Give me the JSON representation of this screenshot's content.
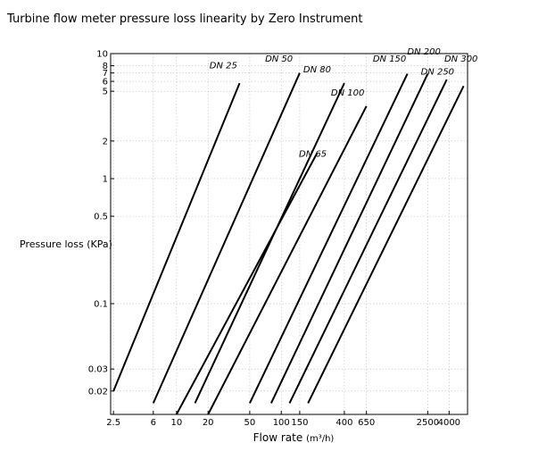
{
  "chart_data": {
    "type": "line",
    "title": "Turbine flow meter pressure loss linearity by Zero Instrument",
    "xlabel": "Flow rate",
    "xlabel_unit": "(m³/h)",
    "ylabel": "Pressure loss (KPa)",
    "xscale": "log",
    "yscale": "log",
    "xlim": [
      2.35,
      6000
    ],
    "ylim": [
      0.013,
      10
    ],
    "grid": true,
    "x_ticks": [
      {
        "v": 2.5,
        "label": "2.5"
      },
      {
        "v": 6,
        "label": "6"
      },
      {
        "v": 10,
        "label": "10"
      },
      {
        "v": 20,
        "label": "20"
      },
      {
        "v": 50,
        "label": "50"
      },
      {
        "v": 100,
        "label": "100"
      },
      {
        "v": 150,
        "label": "150"
      },
      {
        "v": 400,
        "label": "400"
      },
      {
        "v": 650,
        "label": "650"
      },
      {
        "v": 2500,
        "label": "2500"
      },
      {
        "v": 4000,
        "label": "4000"
      }
    ],
    "y_ticks": [
      {
        "v": 0.02,
        "label": "0.02"
      },
      {
        "v": 0.03,
        "label": "0.03"
      },
      {
        "v": 0.1,
        "label": "0.1"
      },
      {
        "v": 0.5,
        "label": "0.5"
      },
      {
        "v": 1,
        "label": "1"
      },
      {
        "v": 2,
        "label": "2"
      },
      {
        "v": 5,
        "label": "5"
      },
      {
        "v": 6,
        "label": "6"
      },
      {
        "v": 7,
        "label": "7"
      },
      {
        "v": 8,
        "label": "8"
      },
      {
        "v": 10,
        "label": "10"
      }
    ],
    "series": [
      {
        "name": "DN 25",
        "x": [
          2.5,
          40
        ],
        "y": [
          0.02,
          5.8
        ]
      },
      {
        "name": "DN 50",
        "x": [
          6,
          150
        ],
        "y": [
          0.016,
          7
        ]
      },
      {
        "name": "DN 65",
        "x": [
          10,
          220
        ],
        "y": [
          0.013,
          1.6
        ]
      },
      {
        "name": "DN 80",
        "x": [
          15,
          400
        ],
        "y": [
          0.016,
          5.8
        ]
      },
      {
        "name": "DN 100",
        "x": [
          20,
          650
        ],
        "y": [
          0.013,
          3.8
        ]
      },
      {
        "name": "DN 150",
        "x": [
          50,
          1600
        ],
        "y": [
          0.016,
          6.9
        ]
      },
      {
        "name": "DN 200",
        "x": [
          80,
          2500
        ],
        "y": [
          0.016,
          6.9
        ]
      },
      {
        "name": "DN 250",
        "x": [
          120,
          3800
        ],
        "y": [
          0.016,
          6.2
        ]
      },
      {
        "name": "DN 300",
        "x": [
          180,
          5500
        ],
        "y": [
          0.016,
          5.5
        ]
      }
    ],
    "annotations": [
      {
        "text": "DN 25",
        "x": 28,
        "y": 7.6
      },
      {
        "text": "DN 50",
        "x": 95,
        "y": 8.6
      },
      {
        "text": "DN 80",
        "x": 220,
        "y": 7.1
      },
      {
        "text": "DN 100",
        "x": 430,
        "y": 4.6
      },
      {
        "text": "DN 150",
        "x": 1080,
        "y": 8.6
      },
      {
        "text": "DN 200",
        "x": 2300,
        "y": 9.8
      },
      {
        "text": "DN 250",
        "x": 3100,
        "y": 6.8
      },
      {
        "text": "DN 300",
        "x": 5200,
        "y": 8.6
      },
      {
        "text": "DN 65",
        "x": 200,
        "y": 1.5
      }
    ]
  }
}
